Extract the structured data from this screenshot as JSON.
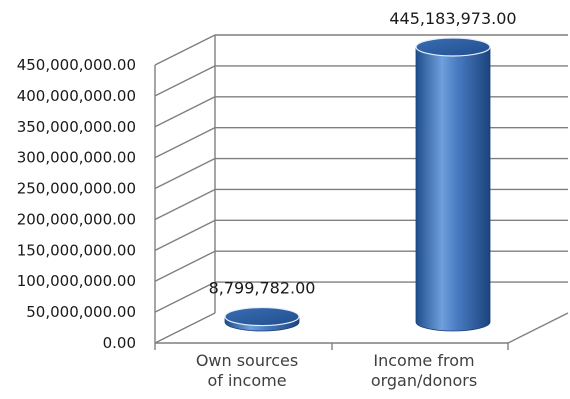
{
  "chart_data": {
    "type": "bar",
    "style": "3d-cylinder",
    "title": "",
    "xlabel": "",
    "ylabel": "",
    "categories": [
      [
        "Own sources",
        "of income"
      ],
      [
        "Income from",
        "organ/donors"
      ]
    ],
    "values": [
      8799782.0,
      445183973.0
    ],
    "data_labels": [
      "8,799,782.00",
      "445,183,973.00"
    ],
    "ylim": [
      0,
      450000000
    ],
    "yticks": [
      {
        "value": 0,
        "label": "0.00"
      },
      {
        "value": 50000000,
        "label": "50,000,000.00"
      },
      {
        "value": 100000000,
        "label": "100,000,000.00"
      },
      {
        "value": 150000000,
        "label": "150,000,000.00"
      },
      {
        "value": 200000000,
        "label": "200,000,000.00"
      },
      {
        "value": 250000000,
        "label": "250,000,000.00"
      },
      {
        "value": 300000000,
        "label": "300,000,000.00"
      },
      {
        "value": 350000000,
        "label": "350,000,000.00"
      },
      {
        "value": 400000000,
        "label": "400,000,000.00"
      },
      {
        "value": 450000000,
        "label": "450,000,000.00"
      }
    ],
    "grid": true,
    "legend": "none",
    "colors": {
      "bar_dark": "#1f4e8c",
      "bar_mid": "#3a6db5",
      "bar_light": "#6f9fdc",
      "bar_top": "#2d5c9e",
      "gridline": "#7f7f7f",
      "text": "#1a1a1a"
    }
  }
}
